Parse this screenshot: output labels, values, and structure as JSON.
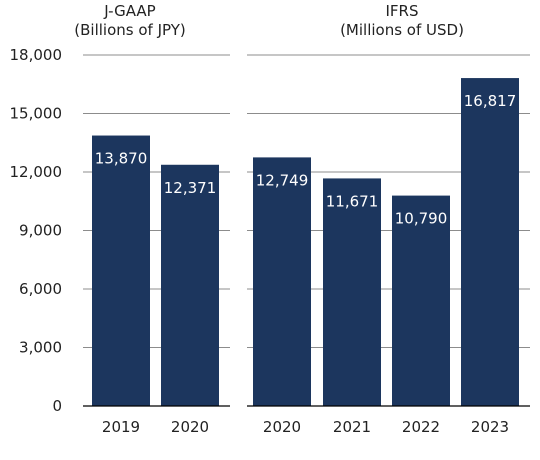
{
  "chart_data": [
    {
      "type": "bar",
      "title": "J-GAAP",
      "subtitle": "(Billions of JPY)",
      "categories": [
        "2019",
        "2020"
      ],
      "values": [
        13870,
        12371
      ],
      "value_labels": [
        "13,870",
        "12,371"
      ],
      "ylim": [
        0,
        18000
      ],
      "y_ticks": [
        "0",
        "3,000",
        "6,000",
        "9,000",
        "12,000",
        "15,000",
        "18,000"
      ],
      "grid": true,
      "bar_color": "#1c365e"
    },
    {
      "type": "bar",
      "title": "IFRS",
      "subtitle": "(Millions of USD)",
      "categories": [
        "2020",
        "2021",
        "2022",
        "2023"
      ],
      "values": [
        12749,
        11671,
        10790,
        16817
      ],
      "value_labels": [
        "12,749",
        "11,671",
        "10,790",
        "16,817"
      ],
      "ylim": [
        0,
        18000
      ],
      "grid": true,
      "bar_color": "#1c365e"
    }
  ]
}
